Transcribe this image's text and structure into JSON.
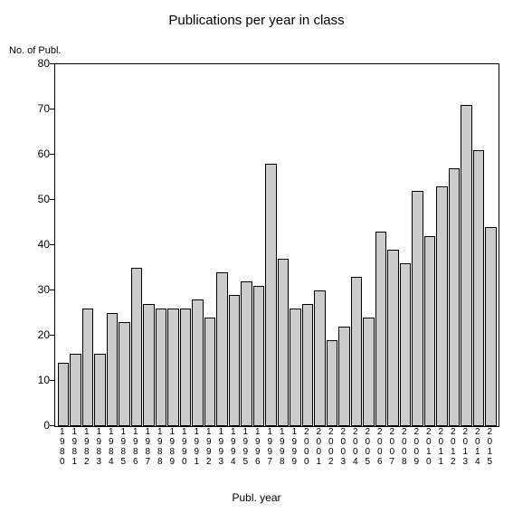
{
  "chart": {
    "type": "bar",
    "title": "Publications per year in class",
    "title_fontsize": 15,
    "ylabel": "No. of Publ.",
    "xlabel": "Publ. year",
    "label_fontsize": 12,
    "ylim": [
      0,
      80
    ],
    "ytick_step": 10,
    "yticks": [
      0,
      10,
      20,
      30,
      40,
      50,
      60,
      70,
      80
    ],
    "background_color": "#ffffff",
    "axis_color": "#000000",
    "bar_color": "#cccccc",
    "bar_border_color": "#000000",
    "categories": [
      "1980",
      "1981",
      "1982",
      "1983",
      "1984",
      "1985",
      "1986",
      "1987",
      "1988",
      "1989",
      "1990",
      "1991",
      "1992",
      "1993",
      "1994",
      "1995",
      "1996",
      "1997",
      "1998",
      "1999",
      "2000",
      "2001",
      "2002",
      "2003",
      "2004",
      "2005",
      "2006",
      "2007",
      "2008",
      "2009",
      "2010",
      "2011",
      "2012",
      "2013",
      "2014",
      "2015"
    ],
    "values": [
      14,
      16,
      26,
      16,
      25,
      23,
      35,
      27,
      26,
      26,
      26,
      28,
      24,
      34,
      29,
      32,
      31,
      58,
      37,
      26,
      27,
      30,
      19,
      22,
      33,
      24,
      43,
      39,
      36,
      52,
      42,
      53,
      57,
      71,
      61,
      44
    ]
  }
}
